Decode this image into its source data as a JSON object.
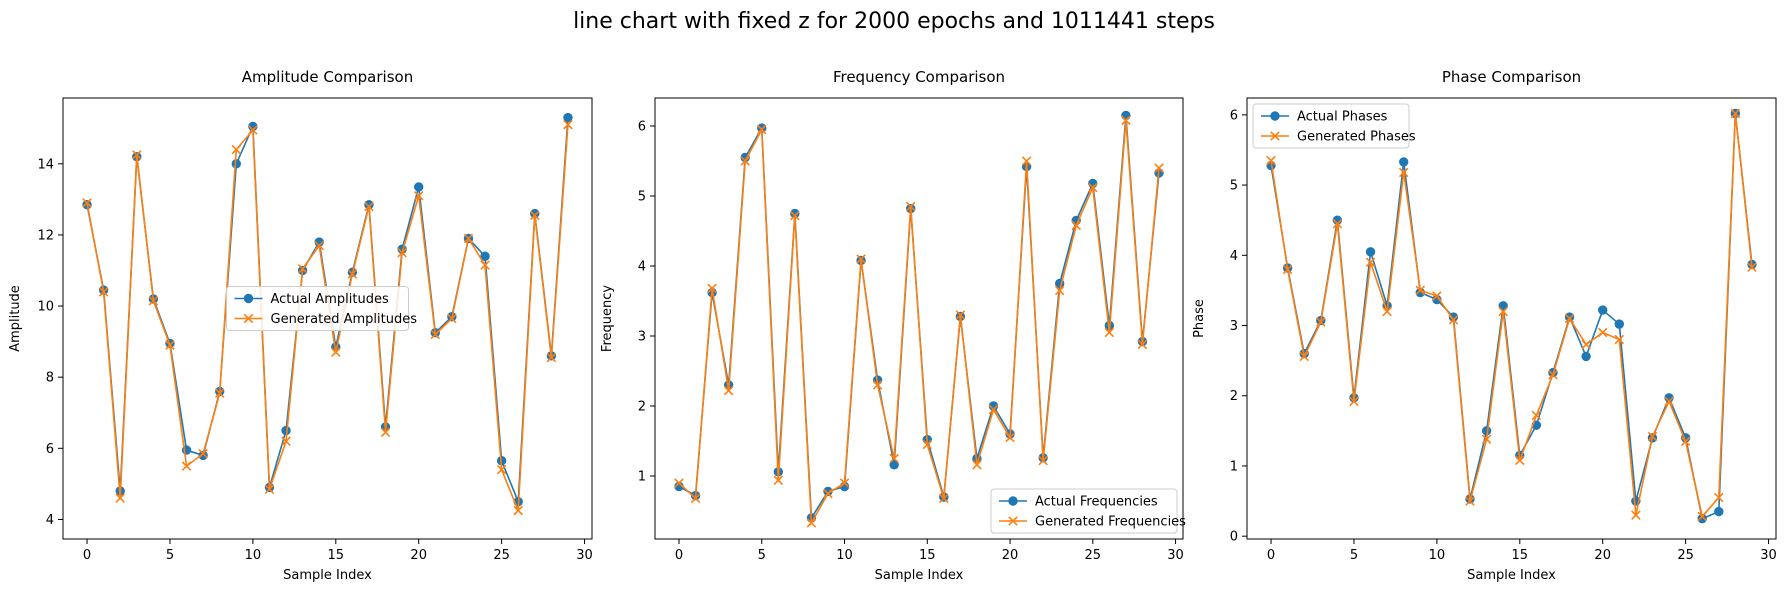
{
  "suptitle": "line chart with fixed z for 2000 epochs and 1011441 steps",
  "colors": {
    "actual": "#1f77b4",
    "generated": "#ff7f0e",
    "axis": "#000000"
  },
  "chart_data": [
    {
      "type": "line",
      "title": "Amplitude Comparison",
      "xlabel": "Sample Index",
      "ylabel": "Amplitude",
      "xlim": [
        -1.45,
        30.45
      ],
      "ylim": [
        3.45,
        15.85
      ],
      "xticks": [
        0,
        5,
        10,
        15,
        20,
        25,
        30
      ],
      "yticks": [
        4,
        6,
        8,
        10,
        12,
        14
      ],
      "legend_position": "center",
      "x": [
        0,
        1,
        2,
        3,
        4,
        5,
        6,
        7,
        8,
        9,
        10,
        11,
        12,
        13,
        14,
        15,
        16,
        17,
        18,
        19,
        20,
        21,
        22,
        23,
        24,
        25,
        26,
        27,
        28,
        29
      ],
      "series": [
        {
          "name": "Actual Amplitudes",
          "marker": "o",
          "values": [
            12.85,
            10.45,
            4.8,
            14.2,
            10.2,
            8.95,
            5.95,
            5.8,
            7.6,
            14.0,
            15.05,
            4.9,
            6.5,
            11.0,
            11.8,
            8.85,
            10.95,
            12.85,
            6.6,
            11.6,
            13.35,
            9.25,
            9.7,
            11.9,
            11.4,
            5.65,
            4.5,
            12.6,
            8.6,
            15.3
          ]
        },
        {
          "name": "Generated Amplitudes",
          "marker": "x",
          "values": [
            12.9,
            10.4,
            4.6,
            14.25,
            10.15,
            8.9,
            5.5,
            5.85,
            7.55,
            14.4,
            14.95,
            4.85,
            6.2,
            11.05,
            11.7,
            8.7,
            10.9,
            12.8,
            6.45,
            11.5,
            13.1,
            9.2,
            9.65,
            11.9,
            11.15,
            5.4,
            4.25,
            12.55,
            8.55,
            15.1
          ]
        }
      ]
    },
    {
      "type": "line",
      "title": "Frequency Comparison",
      "xlabel": "Sample Index",
      "ylabel": "Frequency",
      "xlim": [
        -1.45,
        30.45
      ],
      "ylim": [
        0.1,
        6.4
      ],
      "xticks": [
        0,
        5,
        10,
        15,
        20,
        25,
        30
      ],
      "yticks": [
        1,
        2,
        3,
        4,
        5,
        6
      ],
      "legend_position": "lower right",
      "x": [
        0,
        1,
        2,
        3,
        4,
        5,
        6,
        7,
        8,
        9,
        10,
        11,
        12,
        13,
        14,
        15,
        16,
        17,
        18,
        19,
        20,
        21,
        22,
        23,
        24,
        25,
        26,
        27,
        28,
        29
      ],
      "series": [
        {
          "name": "Actual Frequencies",
          "marker": "o",
          "values": [
            0.85,
            0.72,
            3.62,
            2.3,
            5.55,
            5.97,
            1.06,
            4.75,
            0.4,
            0.78,
            0.85,
            4.08,
            2.37,
            1.16,
            4.82,
            1.52,
            0.7,
            3.28,
            1.25,
            2.0,
            1.6,
            5.42,
            1.26,
            3.75,
            4.65,
            5.18,
            3.15,
            6.15,
            2.92,
            5.33
          ]
        },
        {
          "name": "Generated Frequencies",
          "marker": "x",
          "values": [
            0.9,
            0.68,
            3.68,
            2.22,
            5.5,
            5.95,
            0.94,
            4.72,
            0.33,
            0.75,
            0.9,
            4.1,
            2.3,
            1.25,
            4.85,
            1.45,
            0.68,
            3.3,
            1.16,
            1.95,
            1.55,
            5.5,
            1.22,
            3.65,
            4.58,
            5.12,
            3.05,
            6.08,
            2.88,
            5.4
          ]
        }
      ]
    },
    {
      "type": "line",
      "title": "Phase Comparison",
      "xlabel": "Sample Index",
      "ylabel": "Phase",
      "xlim": [
        -1.45,
        30.45
      ],
      "ylim": [
        -0.04,
        6.24
      ],
      "xticks": [
        0,
        5,
        10,
        15,
        20,
        25,
        30
      ],
      "yticks": [
        0,
        1,
        2,
        3,
        4,
        5,
        6
      ],
      "legend_position": "upper left",
      "x": [
        0,
        1,
        2,
        3,
        4,
        5,
        6,
        7,
        8,
        9,
        10,
        11,
        12,
        13,
        14,
        15,
        16,
        17,
        18,
        19,
        20,
        21,
        22,
        23,
        24,
        25,
        26,
        27,
        28,
        29
      ],
      "series": [
        {
          "name": "Actual Phases",
          "marker": "o",
          "values": [
            5.28,
            3.82,
            2.6,
            3.07,
            4.5,
            1.97,
            4.05,
            3.28,
            5.33,
            3.47,
            3.37,
            3.12,
            0.53,
            1.5,
            3.28,
            1.15,
            1.58,
            2.33,
            3.12,
            2.56,
            3.22,
            3.02,
            0.5,
            1.4,
            1.97,
            1.4,
            0.25,
            0.35,
            6.02,
            3.87
          ]
        },
        {
          "name": "Generated Phases",
          "marker": "x",
          "values": [
            5.35,
            3.8,
            2.56,
            3.05,
            4.45,
            1.92,
            3.9,
            3.2,
            5.18,
            3.5,
            3.42,
            3.08,
            0.5,
            1.38,
            3.2,
            1.08,
            1.72,
            2.3,
            3.1,
            2.73,
            2.9,
            2.8,
            0.3,
            1.42,
            1.92,
            1.35,
            0.28,
            0.55,
            6.02,
            3.83
          ]
        }
      ]
    }
  ]
}
